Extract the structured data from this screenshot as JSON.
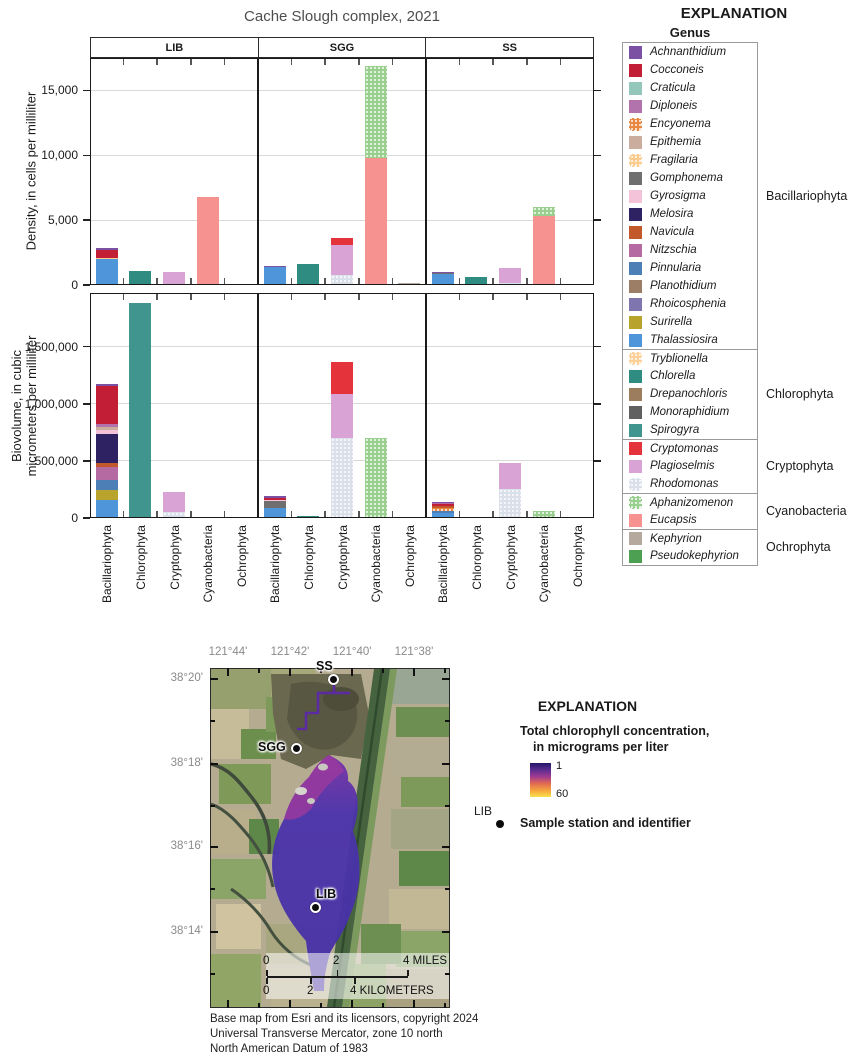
{
  "chart_data": {
    "type": "bar",
    "stacked": true,
    "title": "Cache Slough complex, 2021",
    "facet_columns": [
      "LIB",
      "SGG",
      "SS"
    ],
    "categories": [
      "Bacillariophyta",
      "Chlorophyta",
      "Cryptophyta",
      "Cyanobacteria",
      "Ochrophyta"
    ],
    "legend_position": "right",
    "rows": [
      {
        "ylabel": "Density, in cells per milliliter",
        "ylabel_lines": [
          "Density, in cells per milliliter"
        ],
        "ylim": [
          0,
          17500
        ],
        "yticks": [
          {
            "value": 0,
            "label": "0"
          },
          {
            "value": 5000,
            "label": "5,000"
          },
          {
            "value": 10000,
            "label": "10,000"
          },
          {
            "value": 15000,
            "label": "15,000"
          }
        ],
        "panels": [
          {
            "station": "LIB",
            "bars": [
              {
                "category": "Bacillariophyta",
                "segments": [
                  {
                    "genus": "Thalassiosira",
                    "value": 2000
                  },
                  {
                    "genus": "Fragilaria",
                    "value": 120
                  },
                  {
                    "genus": "Cocconeis",
                    "value": 550
                  },
                  {
                    "genus": "Achnanthidium",
                    "value": 180
                  }
                ]
              },
              {
                "category": "Chlorophyta",
                "segments": [
                  {
                    "genus": "Chlorella",
                    "value": 1120
                  }
                ]
              },
              {
                "category": "Cryptophyta",
                "segments": [
                  {
                    "genus": "Plagioselmis",
                    "value": 1000
                  }
                ]
              },
              {
                "category": "Cyanobacteria",
                "segments": [
                  {
                    "genus": "Eucapsis",
                    "value": 6800
                  }
                ]
              },
              {
                "category": "Ochrophyta",
                "segments": []
              }
            ]
          },
          {
            "station": "SGG",
            "bars": [
              {
                "category": "Bacillariophyta",
                "segments": [
                  {
                    "genus": "Thalassiosira",
                    "value": 1400
                  },
                  {
                    "genus": "Achnanthidium",
                    "value": 100
                  }
                ]
              },
              {
                "category": "Chlorophyta",
                "segments": [
                  {
                    "genus": "Chlorella",
                    "value": 1620
                  }
                ]
              },
              {
                "category": "Cryptophyta",
                "segments": [
                  {
                    "genus": "Rhodomonas",
                    "value": 800
                  },
                  {
                    "genus": "Plagioselmis",
                    "value": 2300
                  },
                  {
                    "genus": "Cryptomonas",
                    "value": 500
                  }
                ]
              },
              {
                "category": "Cyanobacteria",
                "segments": [
                  {
                    "genus": "Eucapsis",
                    "value": 9800
                  },
                  {
                    "genus": "Aphanizomenon",
                    "value": 7100
                  }
                ]
              },
              {
                "category": "Ochrophyta",
                "segments": [
                  {
                    "genus": "Kephyrion",
                    "value": 120
                  }
                ]
              }
            ]
          },
          {
            "station": "SS",
            "bars": [
              {
                "category": "Bacillariophyta",
                "segments": [
                  {
                    "genus": "Thalassiosira",
                    "value": 850
                  },
                  {
                    "genus": "Gomphonema",
                    "value": 80
                  },
                  {
                    "genus": "Achnanthidium",
                    "value": 100
                  }
                ]
              },
              {
                "category": "Chlorophyta",
                "segments": [
                  {
                    "genus": "Chlorella",
                    "value": 620
                  }
                ]
              },
              {
                "category": "Cryptophyta",
                "segments": [
                  {
                    "genus": "Rhodomonas",
                    "value": 120
                  },
                  {
                    "genus": "Plagioselmis",
                    "value": 1180
                  }
                ]
              },
              {
                "category": "Cyanobacteria",
                "segments": [
                  {
                    "genus": "Eucapsis",
                    "value": 5300
                  },
                  {
                    "genus": "Aphanizomenon",
                    "value": 700
                  }
                ]
              },
              {
                "category": "Ochrophyta",
                "segments": [
                  {
                    "genus": "Kephyrion",
                    "value": 60
                  }
                ]
              }
            ]
          }
        ]
      },
      {
        "ylabel": "Biovolume, in cubic micrometers per milliliter",
        "ylabel_lines": [
          "Biovolume, in cubic",
          "micrometers per milliliter"
        ],
        "ylim": [
          0,
          1970000
        ],
        "yticks": [
          {
            "value": 0,
            "label": "0"
          },
          {
            "value": 500000,
            "label": "500,000"
          },
          {
            "value": 1000000,
            "label": "1,000,000"
          },
          {
            "value": 1500000,
            "label": "1,500,000"
          }
        ],
        "panels": [
          {
            "station": "LIB",
            "bars": [
              {
                "category": "Bacillariophyta",
                "segments": [
                  {
                    "genus": "Thalassiosira",
                    "value": 160000
                  },
                  {
                    "genus": "Surirella",
                    "value": 85000
                  },
                  {
                    "genus": "Pinnularia",
                    "value": 90000
                  },
                  {
                    "genus": "Nitzschia",
                    "value": 115000
                  },
                  {
                    "genus": "Navicula",
                    "value": 30000
                  },
                  {
                    "genus": "Melosira",
                    "value": 260000
                  },
                  {
                    "genus": "Gyrosigma",
                    "value": 30000
                  },
                  {
                    "genus": "Epithemia",
                    "value": 25000
                  },
                  {
                    "genus": "Diploneis",
                    "value": 30000
                  },
                  {
                    "genus": "Cocconeis",
                    "value": 330000
                  },
                  {
                    "genus": "Achnanthidium",
                    "value": 20000
                  }
                ]
              },
              {
                "category": "Chlorophyta",
                "segments": [
                  {
                    "genus": "Spirogyra",
                    "value": 1880000
                  }
                ]
              },
              {
                "category": "Cryptophyta",
                "segments": [
                  {
                    "genus": "Rhodomonas",
                    "value": 50000
                  },
                  {
                    "genus": "Plagioselmis",
                    "value": 180000
                  }
                ]
              },
              {
                "category": "Cyanobacteria",
                "segments": []
              },
              {
                "category": "Ochrophyta",
                "segments": []
              }
            ]
          },
          {
            "station": "SGG",
            "bars": [
              {
                "category": "Bacillariophyta",
                "segments": [
                  {
                    "genus": "Thalassiosira",
                    "value": 85000
                  },
                  {
                    "genus": "Gomphonema",
                    "value": 60000
                  },
                  {
                    "genus": "Gyrosigma",
                    "value": 15000
                  },
                  {
                    "genus": "Cocconeis",
                    "value": 18000
                  },
                  {
                    "genus": "Achnanthidium",
                    "value": 12000
                  }
                ]
              },
              {
                "category": "Chlorophyta",
                "segments": [
                  {
                    "genus": "Chlorella",
                    "value": 15000
                  }
                ]
              },
              {
                "category": "Cryptophyta",
                "segments": [
                  {
                    "genus": "Rhodomonas",
                    "value": 700000
                  },
                  {
                    "genus": "Plagioselmis",
                    "value": 390000
                  },
                  {
                    "genus": "Cryptomonas",
                    "value": 280000
                  }
                ]
              },
              {
                "category": "Cyanobacteria",
                "segments": [
                  {
                    "genus": "Aphanizomenon",
                    "value": 700000
                  }
                ]
              },
              {
                "category": "Ochrophyta",
                "segments": [
                  {
                    "genus": "Kephyrion",
                    "value": 8000
                  }
                ]
              }
            ]
          },
          {
            "station": "SS",
            "bars": [
              {
                "category": "Bacillariophyta",
                "segments": [
                  {
                    "genus": "Thalassiosira",
                    "value": 45000
                  },
                  {
                    "genus": "Pinnularia",
                    "value": 15000
                  },
                  {
                    "genus": "Encyonema",
                    "value": 25000
                  },
                  {
                    "genus": "Navicula",
                    "value": 20000
                  },
                  {
                    "genus": "Cocconeis",
                    "value": 18000
                  },
                  {
                    "genus": "Nitzschia",
                    "value": 10000
                  },
                  {
                    "genus": "Achnanthidium",
                    "value": 7000
                  }
                ]
              },
              {
                "category": "Chlorophyta",
                "segments": [
                  {
                    "genus": "Chlorella",
                    "value": 5000
                  }
                ]
              },
              {
                "category": "Cryptophyta",
                "segments": [
                  {
                    "genus": "Rhodomonas",
                    "value": 250000
                  },
                  {
                    "genus": "Plagioselmis",
                    "value": 230000
                  }
                ]
              },
              {
                "category": "Cyanobacteria",
                "segments": [
                  {
                    "genus": "Aphanizomenon",
                    "value": 60000
                  }
                ]
              },
              {
                "category": "Ochrophyta",
                "segments": [
                  {
                    "genus": "Kephyrion",
                    "value": 8000
                  }
                ]
              }
            ]
          }
        ]
      }
    ]
  },
  "genus_legend": {
    "title": "EXPLANATION",
    "heading": "Genus",
    "groups": [
      {
        "name": "Bacillariophyta",
        "genera": [
          {
            "name": "Achnanthidium",
            "color": "#7B52A3",
            "dotted": false
          },
          {
            "name": "Cocconeis",
            "color": "#C21E36",
            "dotted": false
          },
          {
            "name": "Craticula",
            "color": "#92C7B9",
            "dotted": false
          },
          {
            "name": "Diploneis",
            "color": "#B272AB",
            "dotted": false
          },
          {
            "name": "Encyonema",
            "color": "#E9873F",
            "dotted": true
          },
          {
            "name": "Epithemia",
            "color": "#CBAD9D",
            "dotted": false
          },
          {
            "name": "Fragilaria",
            "color": "#FBCB8E",
            "dotted": true
          },
          {
            "name": "Gomphonema",
            "color": "#6F6F6F",
            "dotted": false
          },
          {
            "name": "Gyrosigma",
            "color": "#F4C3DA",
            "dotted": false
          },
          {
            "name": "Melosira",
            "color": "#2E2263",
            "dotted": false
          },
          {
            "name": "Navicula",
            "color": "#C2592B",
            "dotted": false
          },
          {
            "name": "Nitzschia",
            "color": "#B56BA2",
            "dotted": false
          },
          {
            "name": "Pinnularia",
            "color": "#4C7FB5",
            "dotted": false
          },
          {
            "name": "Planothidium",
            "color": "#9C7D66",
            "dotted": false
          },
          {
            "name": "Rhoicosphenia",
            "color": "#7F76B0",
            "dotted": false
          },
          {
            "name": "Surirella",
            "color": "#B8A32C",
            "dotted": false
          },
          {
            "name": "Thalassiosira",
            "color": "#4E95D9",
            "dotted": false
          }
        ]
      },
      {
        "name": "Chlorophyta",
        "genera": [
          {
            "name": "Tryblionella",
            "color": "#FBCF97",
            "dotted": true
          },
          {
            "name": "Chlorella",
            "color": "#2E8C80",
            "dotted": false
          },
          {
            "name": "Drepanochloris",
            "color": "#9C7D5E",
            "dotted": false
          },
          {
            "name": "Monoraphidium",
            "color": "#606060",
            "dotted": false
          },
          {
            "name": "Spirogyra",
            "color": "#41958F",
            "dotted": false
          }
        ]
      },
      {
        "name": "Cryptophyta",
        "genera": [
          {
            "name": "Cryptomonas",
            "color": "#E5333C",
            "dotted": false
          },
          {
            "name": "Plagioselmis",
            "color": "#D9A3D6",
            "dotted": false
          },
          {
            "name": "Rhodomonas",
            "color": "#D9E0EA",
            "dotted": true
          }
        ]
      },
      {
        "name": "Cyanobacteria",
        "genera": [
          {
            "name": "Aphanizomenon",
            "color": "#98CF8D",
            "dotted": true
          },
          {
            "name": "Eucapsis",
            "color": "#F69290",
            "dotted": false
          }
        ]
      },
      {
        "name": "Ochrophyta",
        "genera": [
          {
            "name": "Kephyrion",
            "color": "#B5A99D",
            "dotted": false
          },
          {
            "name": "Pseudokephyrion",
            "color": "#4D9F51",
            "dotted": false
          }
        ]
      }
    ]
  },
  "map": {
    "lon_ticks": [
      {
        "label": "121°44'",
        "f": 0.0756
      },
      {
        "label": "121°42'",
        "f": 0.336
      },
      {
        "label": "121°40'",
        "f": 0.597
      },
      {
        "label": "121°38'",
        "f": 0.857
      }
    ],
    "lat_ticks": [
      {
        "label": "38°20'",
        "f": 0.033
      },
      {
        "label": "38°18'",
        "f": 0.284
      },
      {
        "label": "38°16'",
        "f": 0.53
      },
      {
        "label": "38°14'",
        "f": 0.781
      }
    ],
    "stations": [
      {
        "id": "SS"
      },
      {
        "id": "SGG"
      },
      {
        "id": "LIB"
      }
    ],
    "scale": {
      "miles_labels": [
        "0",
        "2",
        "4 MILES"
      ],
      "km_labels": [
        "0",
        "2",
        "4 KILOMETERS"
      ]
    },
    "attribution": [
      "Base map from Esri and its licensors, copyright 2024",
      "Universal Transverse Mercator, zone 10 north",
      "North American Datum of 1983"
    ],
    "legend": {
      "title": "EXPLANATION",
      "colorbar_title_line1": "Total chlorophyll concentration,",
      "colorbar_title_line2": "in micrograms per liter",
      "colorbar_min_label": "1",
      "colorbar_max_label": "60",
      "colorbar_colors": [
        "#241768",
        "#5b2d8f",
        "#a03a92",
        "#e06a52",
        "#f6a33e",
        "#f9e14d"
      ],
      "station_symbol_label": "LIB",
      "station_symbol_text": "Sample station and identifier"
    }
  }
}
